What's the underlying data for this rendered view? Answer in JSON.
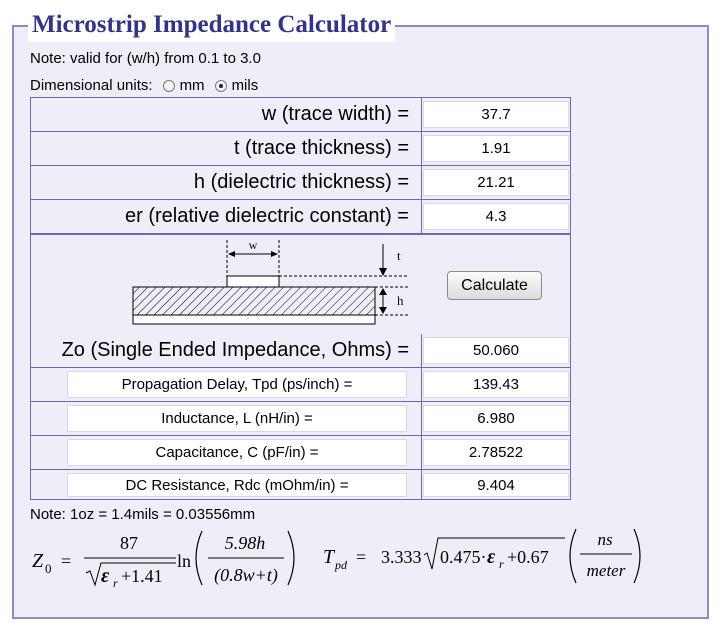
{
  "title": "Microstrip Impedance Calculator",
  "note_valid": "Note: valid for (w/h) from 0.1 to 3.0",
  "units": {
    "label": "Dimensional units:",
    "options": [
      "mm",
      "mils"
    ],
    "selected": "mils"
  },
  "inputs": [
    {
      "label": "w (trace width) =",
      "value": "37.7"
    },
    {
      "label": "t (trace thickness) =",
      "value": "1.91"
    },
    {
      "label": "h (dielectric thickness) =",
      "value": "21.21"
    },
    {
      "label": "er (relative dielectric constant) =",
      "value": "4.3"
    }
  ],
  "diagram": {
    "w": "w",
    "t": "t",
    "h": "h"
  },
  "calculate_label": "Calculate",
  "zo": {
    "label": "Zo (Single Ended Impedance, Ohms) =",
    "value": "50.060"
  },
  "outputs": [
    {
      "label": "Propagation Delay, Tpd (ps/inch) =",
      "value": "139.43"
    },
    {
      "label": "Inductance, L (nH/in) =",
      "value": "6.980"
    },
    {
      "label": "Capacitance, C (pF/in) =",
      "value": "2.78522"
    },
    {
      "label": "DC Resistance, Rdc (mOhm/in) =",
      "value": "9.404"
    }
  ],
  "note_oz": "Note: 1oz = 1.4mils = 0.03556mm",
  "formula_zo": {
    "lhs": "Z",
    "sub": "0",
    "eq": "=",
    "num": "87",
    "den_a": "ε",
    "den_sub": "r",
    "den_b": "+1.41",
    "ln": "ln",
    "in_num": "5.98h",
    "in_den": "(0.8w+t)"
  },
  "formula_tpd": {
    "lhs": "T",
    "sub": "pd",
    "eq": "=",
    "coef": "3.333",
    "rad_a": "0.475·",
    "rad_eps": "ε",
    "rad_sub": "r",
    "rad_b": "+0.67",
    "frac_num": "ns",
    "frac_den": "meter"
  }
}
